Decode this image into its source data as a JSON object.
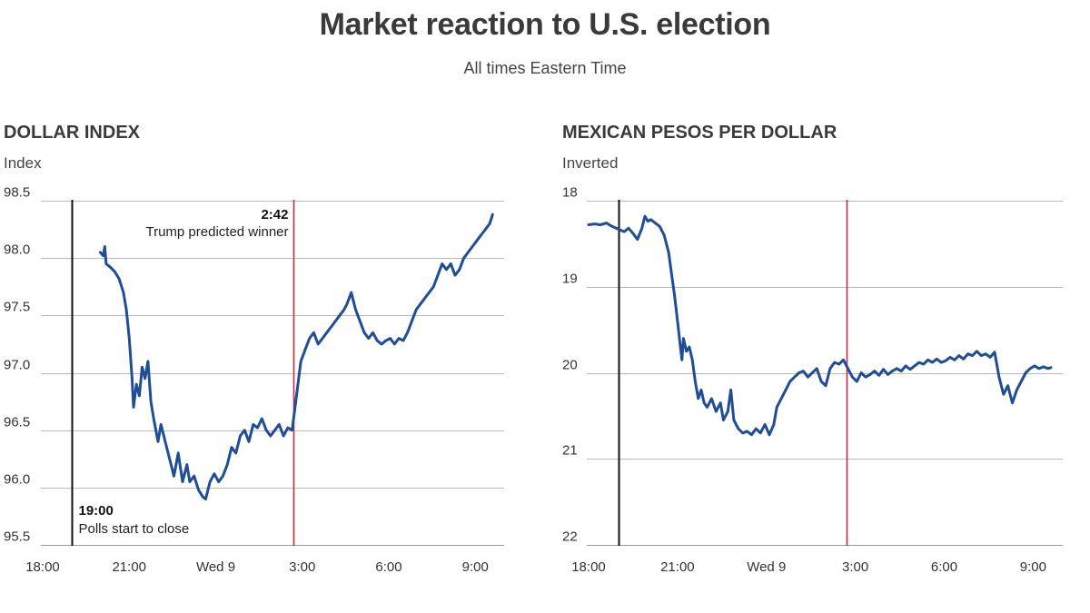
{
  "title": "Market reaction to U.S. election",
  "subtitle": "All times Eastern Time",
  "colors": {
    "series": "#1f4e96",
    "event_line": "#c0303c",
    "start_line": "#111111",
    "grid": "#bbbbbb"
  },
  "chart_data": [
    {
      "type": "line",
      "title": "DOLLAR INDEX",
      "ylabel": "Index",
      "xlabel": "",
      "x_unit": "hours since 18:00 ET Tue Nov 8",
      "x_range": [
        0,
        16
      ],
      "x_ticks": [
        {
          "x": 0,
          "label": "18:00"
        },
        {
          "x": 3,
          "label": "21:00"
        },
        {
          "x": 6,
          "label": "Wed 9"
        },
        {
          "x": 9,
          "label": "3:00"
        },
        {
          "x": 12,
          "label": "6:00"
        },
        {
          "x": 15,
          "label": "9:00"
        }
      ],
      "ylim": [
        95.5,
        98.5
      ],
      "y_inverted": false,
      "y_ticks": [
        {
          "y": 95.5,
          "label": "95.5"
        },
        {
          "y": 96.0,
          "label": "96.0"
        },
        {
          "y": 96.5,
          "label": "96.5"
        },
        {
          "y": 97.0,
          "label": "97.0"
        },
        {
          "y": 97.5,
          "label": "97.5"
        },
        {
          "y": 98.0,
          "label": "98.0"
        },
        {
          "y": 98.5,
          "label": "98.5"
        }
      ],
      "grid": true,
      "events": [
        {
          "x": 1.0,
          "kind": "start",
          "time_label": "19:00",
          "text": "Polls start to close",
          "label_position": "bottom-right"
        },
        {
          "x": 8.7,
          "kind": "event",
          "time_label": "2:42",
          "text": "Trump predicted winner",
          "label_position": "top-left"
        }
      ],
      "series": [
        {
          "name": "Dollar index",
          "points": [
            [
              2.0,
              98.05
            ],
            [
              2.1,
              98.02
            ],
            [
              2.15,
              98.1
            ],
            [
              2.2,
              97.95
            ],
            [
              2.35,
              97.92
            ],
            [
              2.5,
              97.88
            ],
            [
              2.65,
              97.82
            ],
            [
              2.8,
              97.7
            ],
            [
              2.9,
              97.55
            ],
            [
              3.0,
              97.3
            ],
            [
              3.1,
              96.95
            ],
            [
              3.15,
              96.7
            ],
            [
              3.25,
              96.9
            ],
            [
              3.35,
              96.8
            ],
            [
              3.45,
              97.05
            ],
            [
              3.55,
              96.95
            ],
            [
              3.65,
              97.1
            ],
            [
              3.75,
              96.75
            ],
            [
              3.85,
              96.6
            ],
            [
              4.0,
              96.4
            ],
            [
              4.1,
              96.55
            ],
            [
              4.25,
              96.4
            ],
            [
              4.4,
              96.25
            ],
            [
              4.55,
              96.1
            ],
            [
              4.7,
              96.3
            ],
            [
              4.85,
              96.05
            ],
            [
              5.0,
              96.2
            ],
            [
              5.1,
              96.05
            ],
            [
              5.25,
              96.1
            ],
            [
              5.4,
              95.98
            ],
            [
              5.55,
              95.92
            ],
            [
              5.65,
              95.9
            ],
            [
              5.8,
              96.05
            ],
            [
              5.95,
              96.12
            ],
            [
              6.1,
              96.05
            ],
            [
              6.25,
              96.1
            ],
            [
              6.4,
              96.2
            ],
            [
              6.55,
              96.35
            ],
            [
              6.7,
              96.3
            ],
            [
              6.85,
              96.45
            ],
            [
              7.0,
              96.5
            ],
            [
              7.15,
              96.4
            ],
            [
              7.3,
              96.55
            ],
            [
              7.45,
              96.52
            ],
            [
              7.6,
              96.6
            ],
            [
              7.75,
              96.5
            ],
            [
              7.9,
              96.45
            ],
            [
              8.05,
              96.5
            ],
            [
              8.2,
              96.55
            ],
            [
              8.35,
              96.45
            ],
            [
              8.5,
              96.52
            ],
            [
              8.65,
              96.5
            ],
            [
              8.8,
              96.8
            ],
            [
              8.95,
              97.1
            ],
            [
              9.1,
              97.2
            ],
            [
              9.25,
              97.3
            ],
            [
              9.4,
              97.35
            ],
            [
              9.55,
              97.25
            ],
            [
              9.7,
              97.3
            ],
            [
              9.85,
              97.35
            ],
            [
              10.0,
              97.4
            ],
            [
              10.15,
              97.45
            ],
            [
              10.3,
              97.5
            ],
            [
              10.45,
              97.55
            ],
            [
              10.55,
              97.6
            ],
            [
              10.7,
              97.7
            ],
            [
              10.85,
              97.55
            ],
            [
              11.0,
              97.45
            ],
            [
              11.15,
              97.35
            ],
            [
              11.3,
              97.3
            ],
            [
              11.45,
              97.35
            ],
            [
              11.6,
              97.28
            ],
            [
              11.75,
              97.25
            ],
            [
              11.9,
              97.28
            ],
            [
              12.05,
              97.3
            ],
            [
              12.2,
              97.25
            ],
            [
              12.35,
              97.3
            ],
            [
              12.5,
              97.28
            ],
            [
              12.65,
              97.35
            ],
            [
              12.8,
              97.45
            ],
            [
              12.95,
              97.55
            ],
            [
              13.1,
              97.6
            ],
            [
              13.25,
              97.65
            ],
            [
              13.4,
              97.7
            ],
            [
              13.55,
              97.75
            ],
            [
              13.7,
              97.85
            ],
            [
              13.85,
              97.95
            ],
            [
              14.0,
              97.9
            ],
            [
              14.15,
              97.95
            ],
            [
              14.3,
              97.85
            ],
            [
              14.45,
              97.9
            ],
            [
              14.6,
              98.0
            ],
            [
              14.75,
              98.05
            ],
            [
              14.9,
              98.1
            ],
            [
              15.05,
              98.15
            ],
            [
              15.2,
              98.2
            ],
            [
              15.35,
              98.25
            ],
            [
              15.5,
              98.3
            ],
            [
              15.6,
              98.38
            ]
          ]
        }
      ]
    },
    {
      "type": "line",
      "title": "MEXICAN PESOS PER DOLLAR",
      "ylabel": "Inverted",
      "xlabel": "",
      "x_unit": "hours since 18:00 ET Tue Nov 8",
      "x_range": [
        0,
        16
      ],
      "x_ticks": [
        {
          "x": 0,
          "label": "18:00"
        },
        {
          "x": 3,
          "label": "21:00"
        },
        {
          "x": 6,
          "label": "Wed 9"
        },
        {
          "x": 9,
          "label": "3:00"
        },
        {
          "x": 12,
          "label": "6:00"
        },
        {
          "x": 15,
          "label": "9:00"
        }
      ],
      "ylim": [
        18,
        22
      ],
      "y_inverted": true,
      "y_ticks": [
        {
          "y": 18,
          "label": "18"
        },
        {
          "y": 19,
          "label": "19"
        },
        {
          "y": 20,
          "label": "20"
        },
        {
          "y": 21,
          "label": "21"
        },
        {
          "y": 22,
          "label": "22"
        }
      ],
      "grid": true,
      "events": [
        {
          "x": 1.0,
          "kind": "start",
          "time_label": "",
          "text": "",
          "label_position": "none"
        },
        {
          "x": 8.7,
          "kind": "event",
          "time_label": "",
          "text": "",
          "label_position": "none"
        }
      ],
      "series": [
        {
          "name": "MXN per USD",
          "points": [
            [
              0.0,
              18.28
            ],
            [
              0.2,
              18.27
            ],
            [
              0.4,
              18.28
            ],
            [
              0.6,
              18.26
            ],
            [
              0.8,
              18.3
            ],
            [
              1.0,
              18.33
            ],
            [
              1.2,
              18.36
            ],
            [
              1.35,
              18.32
            ],
            [
              1.5,
              18.38
            ],
            [
              1.65,
              18.45
            ],
            [
              1.8,
              18.32
            ],
            [
              1.9,
              18.18
            ],
            [
              2.0,
              18.24
            ],
            [
              2.1,
              18.22
            ],
            [
              2.25,
              18.26
            ],
            [
              2.4,
              18.3
            ],
            [
              2.55,
              18.4
            ],
            [
              2.7,
              18.6
            ],
            [
              2.8,
              18.85
            ],
            [
              2.9,
              19.1
            ],
            [
              3.0,
              19.4
            ],
            [
              3.1,
              19.7
            ],
            [
              3.15,
              19.85
            ],
            [
              3.2,
              19.6
            ],
            [
              3.3,
              19.75
            ],
            [
              3.4,
              19.7
            ],
            [
              3.5,
              19.85
            ],
            [
              3.6,
              20.1
            ],
            [
              3.7,
              20.3
            ],
            [
              3.8,
              20.2
            ],
            [
              3.9,
              20.35
            ],
            [
              4.0,
              20.4
            ],
            [
              4.15,
              20.3
            ],
            [
              4.3,
              20.45
            ],
            [
              4.45,
              20.35
            ],
            [
              4.55,
              20.55
            ],
            [
              4.7,
              20.45
            ],
            [
              4.8,
              20.2
            ],
            [
              4.9,
              20.55
            ],
            [
              5.05,
              20.65
            ],
            [
              5.2,
              20.7
            ],
            [
              5.35,
              20.68
            ],
            [
              5.5,
              20.72
            ],
            [
              5.65,
              20.65
            ],
            [
              5.8,
              20.7
            ],
            [
              5.95,
              20.6
            ],
            [
              6.1,
              20.72
            ],
            [
              6.25,
              20.6
            ],
            [
              6.35,
              20.4
            ],
            [
              6.5,
              20.3
            ],
            [
              6.65,
              20.2
            ],
            [
              6.8,
              20.1
            ],
            [
              6.95,
              20.05
            ],
            [
              7.1,
              20.0
            ],
            [
              7.25,
              19.98
            ],
            [
              7.4,
              20.05
            ],
            [
              7.55,
              20.0
            ],
            [
              7.7,
              19.95
            ],
            [
              7.85,
              20.1
            ],
            [
              8.0,
              20.15
            ],
            [
              8.15,
              19.95
            ],
            [
              8.3,
              19.88
            ],
            [
              8.45,
              19.9
            ],
            [
              8.6,
              19.85
            ],
            [
              8.75,
              19.95
            ],
            [
              8.9,
              20.05
            ],
            [
              9.05,
              20.1
            ],
            [
              9.2,
              20.0
            ],
            [
              9.35,
              20.05
            ],
            [
              9.5,
              20.02
            ],
            [
              9.65,
              19.98
            ],
            [
              9.8,
              20.03
            ],
            [
              9.95,
              19.96
            ],
            [
              10.1,
              20.02
            ],
            [
              10.25,
              19.98
            ],
            [
              10.4,
              19.95
            ],
            [
              10.55,
              19.98
            ],
            [
              10.7,
              19.92
            ],
            [
              10.85,
              19.96
            ],
            [
              11.0,
              19.92
            ],
            [
              11.15,
              19.88
            ],
            [
              11.3,
              19.9
            ],
            [
              11.45,
              19.85
            ],
            [
              11.6,
              19.88
            ],
            [
              11.75,
              19.84
            ],
            [
              11.9,
              19.88
            ],
            [
              12.05,
              19.86
            ],
            [
              12.2,
              19.82
            ],
            [
              12.35,
              19.85
            ],
            [
              12.5,
              19.8
            ],
            [
              12.65,
              19.84
            ],
            [
              12.8,
              19.78
            ],
            [
              12.95,
              19.8
            ],
            [
              13.1,
              19.75
            ],
            [
              13.25,
              19.8
            ],
            [
              13.4,
              19.78
            ],
            [
              13.55,
              19.82
            ],
            [
              13.7,
              19.76
            ],
            [
              13.85,
              20.05
            ],
            [
              14.0,
              20.25
            ],
            [
              14.15,
              20.15
            ],
            [
              14.3,
              20.35
            ],
            [
              14.45,
              20.2
            ],
            [
              14.6,
              20.1
            ],
            [
              14.75,
              20.0
            ],
            [
              14.9,
              19.95
            ],
            [
              15.05,
              19.92
            ],
            [
              15.2,
              19.95
            ],
            [
              15.35,
              19.93
            ],
            [
              15.5,
              19.95
            ],
            [
              15.6,
              19.94
            ]
          ]
        }
      ]
    }
  ]
}
